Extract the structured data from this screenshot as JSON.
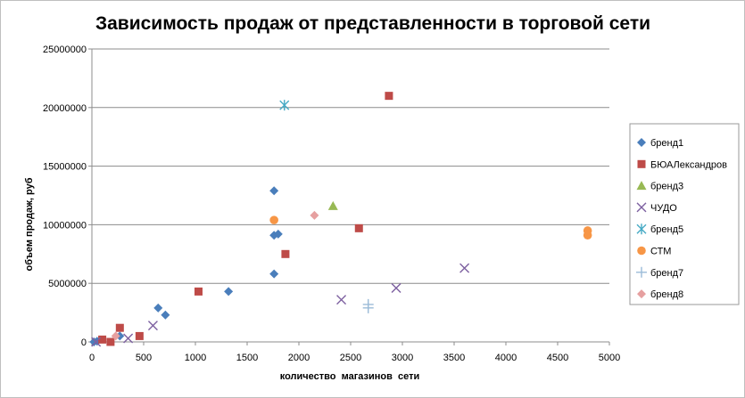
{
  "chart_data": {
    "type": "scatter",
    "title": "Зависимость продаж от представленности в торговой сети",
    "xlabel": "количество  магазинов  сети",
    "ylabel": "объем продаж, руб",
    "xlim": [
      0,
      5000
    ],
    "ylim": [
      0,
      25000000
    ],
    "x_ticks": [
      "0",
      "500",
      "1000",
      "1500",
      "2000",
      "2500",
      "3000",
      "3500",
      "4000",
      "4500",
      "5000"
    ],
    "y_ticks": [
      "0",
      "5000000",
      "10000000",
      "15000000",
      "20000000",
      "25000000"
    ],
    "grid": "horizontal",
    "legend_position": "right",
    "series": [
      {
        "name": "бренд1",
        "marker": "diamond",
        "color": "#4a7ebb",
        "points": [
          [
            20,
            0
          ],
          [
            50,
            60000
          ],
          [
            270,
            500000
          ],
          [
            640,
            2900000
          ],
          [
            710,
            2300000
          ],
          [
            1320,
            4300000
          ],
          [
            1760,
            5800000
          ],
          [
            1760,
            9100000
          ],
          [
            1800,
            9200000
          ],
          [
            1760,
            12900000
          ]
        ]
      },
      {
        "name": "БЮАЛександров",
        "marker": "square",
        "color": "#be4b48",
        "points": [
          [
            100,
            200000
          ],
          [
            180,
            0
          ],
          [
            270,
            1200000
          ],
          [
            460,
            500000
          ],
          [
            1030,
            4300000
          ],
          [
            1870,
            7500000
          ],
          [
            2580,
            9700000
          ],
          [
            2870,
            21000000
          ]
        ]
      },
      {
        "name": "бренд3",
        "marker": "triangle",
        "color": "#98b954",
        "points": [
          [
            2330,
            11600000
          ]
        ]
      },
      {
        "name": "ЧУДО",
        "marker": "x",
        "color": "#7d60a0",
        "points": [
          [
            40,
            0
          ],
          [
            350,
            300000
          ],
          [
            590,
            1400000
          ],
          [
            2410,
            3600000
          ],
          [
            2940,
            4600000
          ],
          [
            3600,
            6300000
          ]
        ]
      },
      {
        "name": "бренд5",
        "marker": "star",
        "color": "#46aac5",
        "points": [
          [
            1860,
            20200000
          ]
        ]
      },
      {
        "name": "СТМ",
        "marker": "circle",
        "color": "#f79646",
        "points": [
          [
            1760,
            10400000
          ],
          [
            4790,
            9100000
          ],
          [
            4790,
            9500000
          ]
        ]
      },
      {
        "name": "бренд7",
        "marker": "plus",
        "color": "#9bbbd8",
        "points": [
          [
            2670,
            2900000
          ],
          [
            2670,
            3200000
          ]
        ]
      },
      {
        "name": "бренд8",
        "marker": "diamond",
        "color": "#e6a0a0",
        "points": [
          [
            230,
            500000
          ],
          [
            2150,
            10800000
          ]
        ]
      }
    ]
  }
}
